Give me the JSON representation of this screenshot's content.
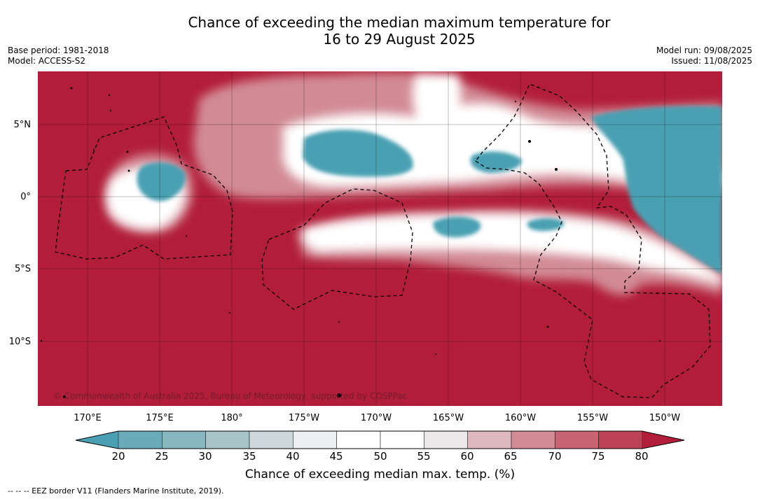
{
  "title_line1": "Chance of exceeding the median maximum temperature for",
  "title_line2": "16 to 29 August 2025",
  "base_period": "Base period: 1981-2018",
  "model": "Model: ACCESS-S2",
  "model_run": "Model run: 09/08/2025",
  "issued": "Issued: 11/08/2025",
  "copyright": "© Commonwealth of Australia 2025, Bureau of Meteorology, supported by COSPPac",
  "lat_labels": [
    "5°N",
    "0°",
    "5°S",
    "10°S"
  ],
  "lon_labels": [
    "170°E",
    "175°E",
    "180°",
    "175°W",
    "170°W",
    "165°W",
    "160°W",
    "155°W",
    "150°W"
  ],
  "colorbar": {
    "ticks": [
      "20",
      "25",
      "30",
      "35",
      "40",
      "45",
      "50",
      "55",
      "60",
      "65",
      "70",
      "75",
      "80"
    ],
    "colors": [
      "#4aa0b2",
      "#6aabb9",
      "#88b7c2",
      "#a9c4c8",
      "#ccd8dc",
      "#ecf0f2",
      "#ffffff",
      "#ffffff",
      "#ebe8e9",
      "#ddb8be",
      "#d38c96",
      "#c86474",
      "#bc4356",
      "#b21e3a"
    ],
    "label": "Chance of exceeding median max. temp. (%)"
  },
  "footnote": "--  --  -- EEZ border V11 (Flanders Marine Institute, 2019)."
}
